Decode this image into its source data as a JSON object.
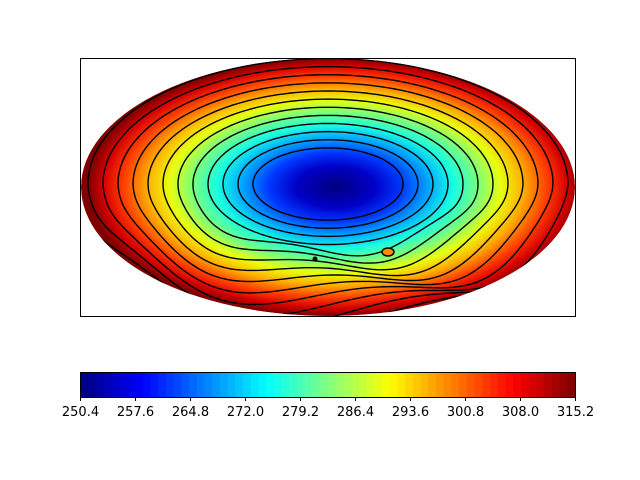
{
  "chart_data": {
    "type": "heatmap",
    "projection": "hammer",
    "title": "",
    "colormap": "jet",
    "contour_lines": true,
    "contour_color": "#000000",
    "vmin": 250.4,
    "vmax": 315.2,
    "colorbar": {
      "orientation": "horizontal",
      "placement": "bottom",
      "ticks": [
        "250.4",
        "257.6",
        "264.8",
        "272.0",
        "279.2",
        "286.4",
        "293.6",
        "300.8",
        "308.0",
        "315.2"
      ],
      "tick_values": [
        250.4,
        257.6,
        264.8,
        272.0,
        279.2,
        286.4,
        293.6,
        300.8,
        308.0,
        315.2
      ]
    },
    "contour_levels": [
      257.6,
      261.2,
      264.8,
      268.4,
      272.0,
      275.6,
      279.2,
      282.8,
      286.4,
      290.0,
      293.6,
      297.2,
      300.8,
      304.4,
      308.0
    ]
  }
}
